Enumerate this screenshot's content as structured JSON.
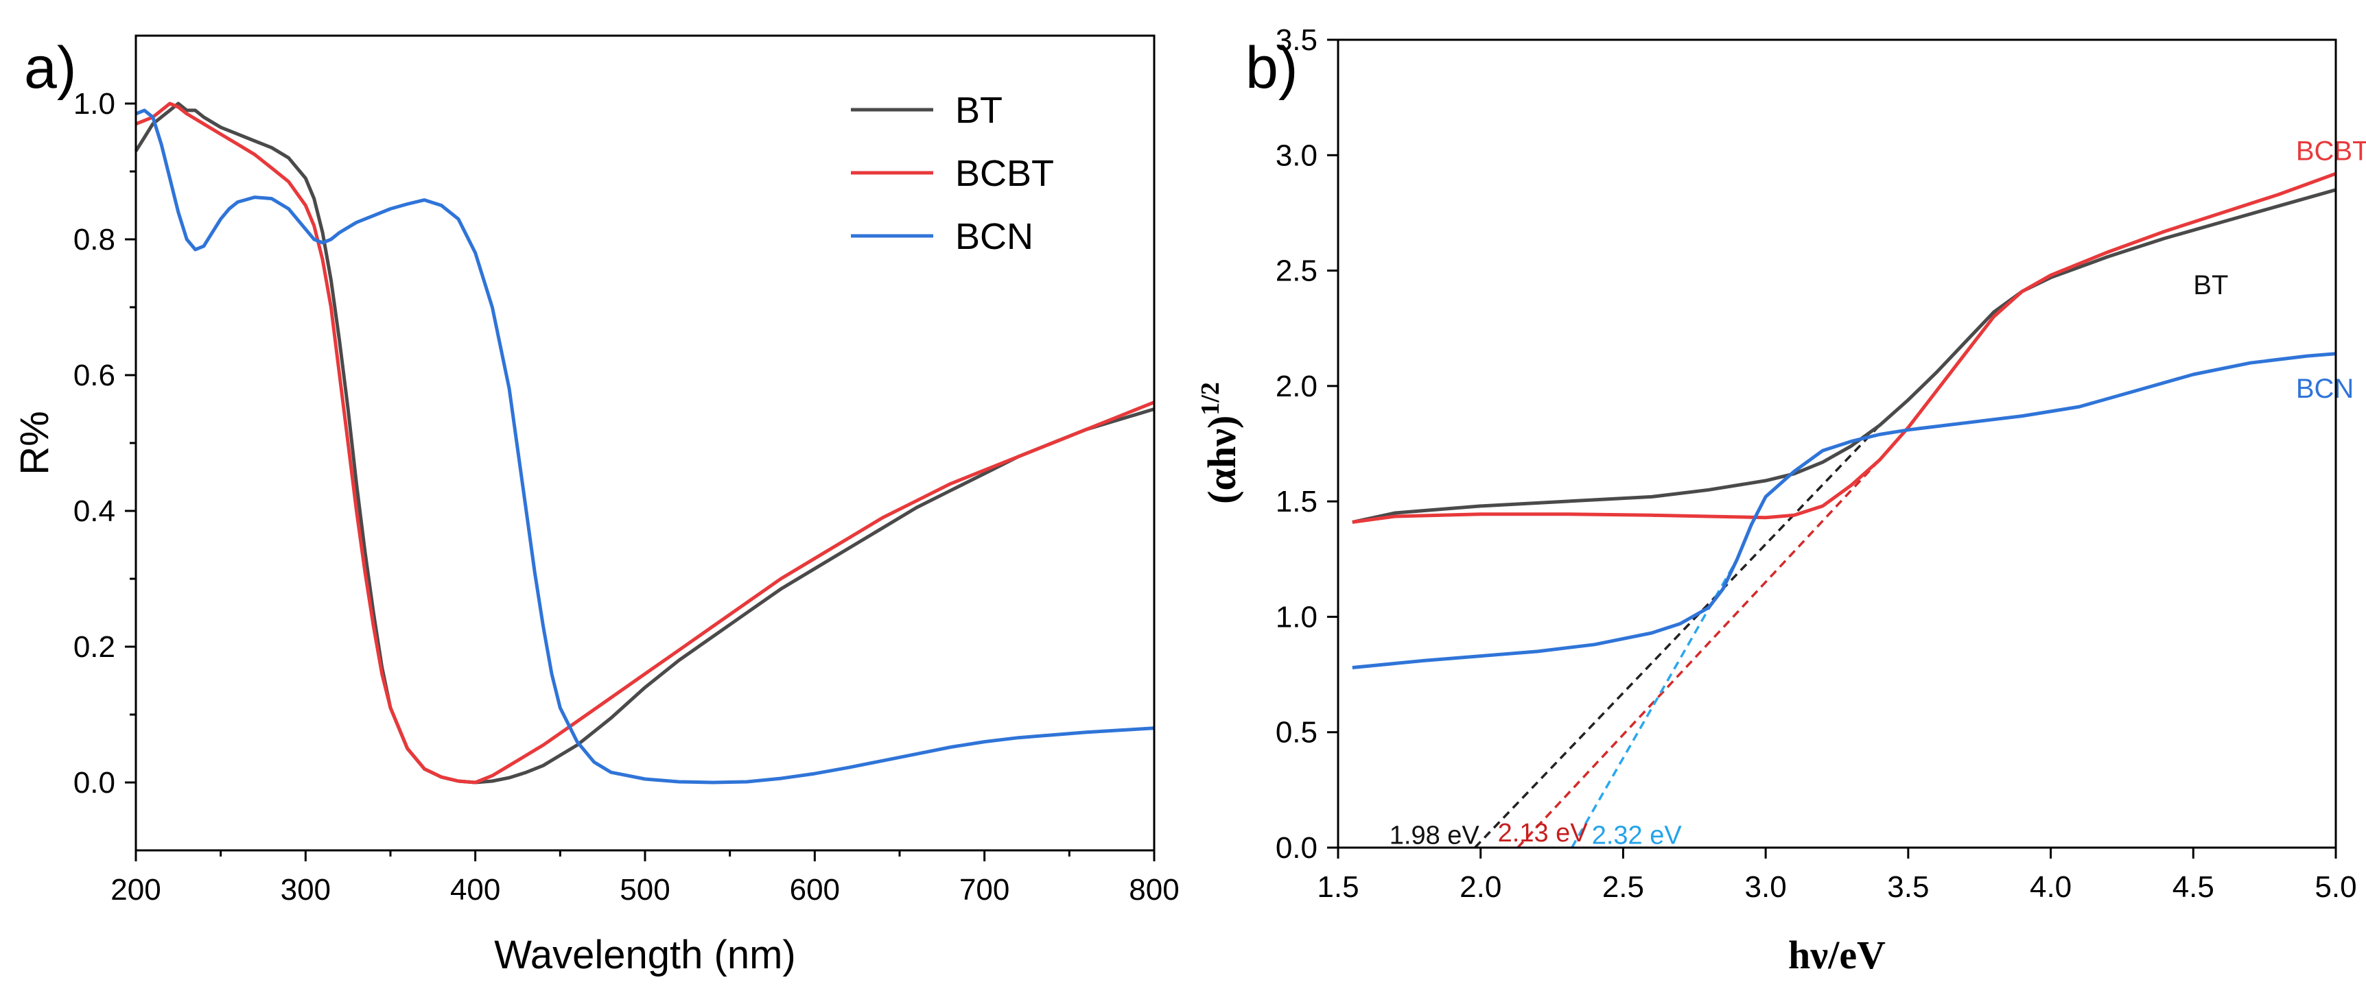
{
  "chart_data": [
    {
      "type": "line",
      "panel_label": "a)",
      "xlabel": "Wavelength (nm)",
      "ylabel": "R%",
      "xlim": [
        200,
        800
      ],
      "ylim": [
        -0.1,
        1.1
      ],
      "x_ticks": [
        200,
        300,
        400,
        500,
        600,
        700,
        800
      ],
      "y_ticks": [
        0.0,
        0.2,
        0.4,
        0.6,
        0.8,
        1.0
      ],
      "x_tick_labels": [
        "200",
        "300",
        "400",
        "500",
        "600",
        "700",
        "800"
      ],
      "y_tick_labels": [
        "0.0",
        "0.2",
        "0.4",
        "0.6",
        "0.8",
        "1.0"
      ],
      "legend": {
        "position": "top-right",
        "entries": [
          "BT",
          "BCBT",
          "BCN"
        ]
      },
      "series": [
        {
          "name": "BT",
          "color": "#4a4a4a",
          "points": [
            [
              200,
              0.93
            ],
            [
              205,
              0.95
            ],
            [
              210,
              0.97
            ],
            [
              215,
              0.98
            ],
            [
              220,
              0.99
            ],
            [
              225,
              1.0
            ],
            [
              230,
              0.99
            ],
            [
              235,
              0.99
            ],
            [
              240,
              0.98
            ],
            [
              250,
              0.965
            ],
            [
              260,
              0.955
            ],
            [
              270,
              0.945
            ],
            [
              280,
              0.935
            ],
            [
              290,
              0.92
            ],
            [
              300,
              0.89
            ],
            [
              305,
              0.86
            ],
            [
              310,
              0.81
            ],
            [
              315,
              0.74
            ],
            [
              320,
              0.65
            ],
            [
              325,
              0.55
            ],
            [
              330,
              0.44
            ],
            [
              335,
              0.34
            ],
            [
              340,
              0.25
            ],
            [
              345,
              0.17
            ],
            [
              350,
              0.11
            ],
            [
              360,
              0.05
            ],
            [
              370,
              0.02
            ],
            [
              380,
              0.008
            ],
            [
              390,
              0.002
            ],
            [
              400,
              0.0
            ],
            [
              410,
              0.002
            ],
            [
              420,
              0.007
            ],
            [
              430,
              0.015
            ],
            [
              440,
              0.025
            ],
            [
              450,
              0.04
            ],
            [
              460,
              0.055
            ],
            [
              470,
              0.075
            ],
            [
              480,
              0.095
            ],
            [
              500,
              0.14
            ],
            [
              520,
              0.18
            ],
            [
              540,
              0.215
            ],
            [
              560,
              0.25
            ],
            [
              580,
              0.285
            ],
            [
              600,
              0.315
            ],
            [
              620,
              0.345
            ],
            [
              640,
              0.375
            ],
            [
              660,
              0.405
            ],
            [
              680,
              0.43
            ],
            [
              700,
              0.455
            ],
            [
              720,
              0.48
            ],
            [
              740,
              0.5
            ],
            [
              760,
              0.52
            ],
            [
              780,
              0.535
            ],
            [
              800,
              0.55
            ]
          ]
        },
        {
          "name": "BCBT",
          "color": "#e8393b",
          "points": [
            [
              200,
              0.97
            ],
            [
              205,
              0.975
            ],
            [
              210,
              0.98
            ],
            [
              215,
              0.99
            ],
            [
              220,
              1.0
            ],
            [
              225,
              0.995
            ],
            [
              230,
              0.985
            ],
            [
              240,
              0.97
            ],
            [
              250,
              0.955
            ],
            [
              260,
              0.94
            ],
            [
              270,
              0.925
            ],
            [
              280,
              0.905
            ],
            [
              290,
              0.885
            ],
            [
              300,
              0.85
            ],
            [
              305,
              0.82
            ],
            [
              310,
              0.77
            ],
            [
              315,
              0.7
            ],
            [
              320,
              0.6
            ],
            [
              325,
              0.5
            ],
            [
              330,
              0.4
            ],
            [
              335,
              0.31
            ],
            [
              340,
              0.23
            ],
            [
              345,
              0.16
            ],
            [
              350,
              0.11
            ],
            [
              360,
              0.05
            ],
            [
              370,
              0.02
            ],
            [
              380,
              0.008
            ],
            [
              390,
              0.002
            ],
            [
              400,
              0.0
            ],
            [
              410,
              0.01
            ],
            [
              420,
              0.025
            ],
            [
              430,
              0.04
            ],
            [
              440,
              0.055
            ],
            [
              460,
              0.09
            ],
            [
              480,
              0.125
            ],
            [
              500,
              0.16
            ],
            [
              520,
              0.195
            ],
            [
              540,
              0.23
            ],
            [
              560,
              0.265
            ],
            [
              580,
              0.3
            ],
            [
              600,
              0.33
            ],
            [
              620,
              0.36
            ],
            [
              640,
              0.39
            ],
            [
              660,
              0.415
            ],
            [
              680,
              0.44
            ],
            [
              700,
              0.46
            ],
            [
              720,
              0.48
            ],
            [
              740,
              0.5
            ],
            [
              760,
              0.52
            ],
            [
              780,
              0.54
            ],
            [
              800,
              0.56
            ]
          ]
        },
        {
          "name": "BCN",
          "color": "#2f74d8",
          "points": [
            [
              200,
              0.985
            ],
            [
              205,
              0.99
            ],
            [
              210,
              0.98
            ],
            [
              215,
              0.94
            ],
            [
              220,
              0.89
            ],
            [
              225,
              0.84
            ],
            [
              230,
              0.8
            ],
            [
              235,
              0.785
            ],
            [
              240,
              0.79
            ],
            [
              245,
              0.81
            ],
            [
              250,
              0.83
            ],
            [
              255,
              0.845
            ],
            [
              260,
              0.855
            ],
            [
              270,
              0.862
            ],
            [
              280,
              0.86
            ],
            [
              290,
              0.845
            ],
            [
              300,
              0.815
            ],
            [
              305,
              0.8
            ],
            [
              310,
              0.795
            ],
            [
              315,
              0.8
            ],
            [
              320,
              0.81
            ],
            [
              330,
              0.825
            ],
            [
              340,
              0.835
            ],
            [
              350,
              0.845
            ],
            [
              360,
              0.852
            ],
            [
              370,
              0.858
            ],
            [
              380,
              0.85
            ],
            [
              390,
              0.83
            ],
            [
              400,
              0.78
            ],
            [
              410,
              0.7
            ],
            [
              420,
              0.58
            ],
            [
              425,
              0.49
            ],
            [
              430,
              0.4
            ],
            [
              435,
              0.31
            ],
            [
              440,
              0.23
            ],
            [
              445,
              0.16
            ],
            [
              450,
              0.11
            ],
            [
              460,
              0.06
            ],
            [
              470,
              0.03
            ],
            [
              480,
              0.015
            ],
            [
              500,
              0.005
            ],
            [
              520,
              0.001
            ],
            [
              540,
              0.0
            ],
            [
              560,
              0.001
            ],
            [
              580,
              0.006
            ],
            [
              600,
              0.013
            ],
            [
              620,
              0.022
            ],
            [
              640,
              0.032
            ],
            [
              660,
              0.042
            ],
            [
              680,
              0.052
            ],
            [
              700,
              0.06
            ],
            [
              720,
              0.066
            ],
            [
              740,
              0.07
            ],
            [
              760,
              0.074
            ],
            [
              780,
              0.077
            ],
            [
              800,
              0.08
            ]
          ]
        }
      ]
    },
    {
      "type": "line",
      "panel_label": "b)",
      "xlabel": "hν/eV",
      "ylabel_main": "(αhν)",
      "ylabel_sup": "1/2",
      "xlim": [
        1.5,
        5.0
      ],
      "ylim": [
        0.0,
        3.5
      ],
      "x_ticks": [
        1.5,
        2.0,
        2.5,
        3.0,
        3.5,
        4.0,
        4.5,
        5.0
      ],
      "y_ticks": [
        0.0,
        0.5,
        1.0,
        1.5,
        2.0,
        2.5,
        3.0,
        3.5
      ],
      "x_tick_labels": [
        "1.5",
        "2.0",
        "2.5",
        "3.0",
        "3.5",
        "4.0",
        "4.5",
        "5.0"
      ],
      "y_tick_labels": [
        "0.0",
        "0.5",
        "1.0",
        "1.5",
        "2.0",
        "2.5",
        "3.0",
        "3.5"
      ],
      "series": [
        {
          "name": "BT",
          "color": "#4a4a4a",
          "label_at": [
            4.5,
            2.44
          ],
          "points": [
            [
              1.55,
              1.41
            ],
            [
              1.7,
              1.45
            ],
            [
              2.0,
              1.48
            ],
            [
              2.3,
              1.5
            ],
            [
              2.6,
              1.52
            ],
            [
              2.8,
              1.55
            ],
            [
              3.0,
              1.59
            ],
            [
              3.1,
              1.62
            ],
            [
              3.2,
              1.67
            ],
            [
              3.3,
              1.74
            ],
            [
              3.4,
              1.83
            ],
            [
              3.5,
              1.94
            ],
            [
              3.6,
              2.06
            ],
            [
              3.7,
              2.19
            ],
            [
              3.8,
              2.32
            ],
            [
              3.9,
              2.41
            ],
            [
              4.0,
              2.47
            ],
            [
              4.2,
              2.56
            ],
            [
              4.4,
              2.64
            ],
            [
              4.6,
              2.71
            ],
            [
              4.8,
              2.78
            ],
            [
              5.0,
              2.85
            ]
          ]
        },
        {
          "name": "BCBT",
          "color": "#e8393b",
          "label_at": [
            4.86,
            3.02
          ],
          "points": [
            [
              1.55,
              1.41
            ],
            [
              1.7,
              1.435
            ],
            [
              2.0,
              1.445
            ],
            [
              2.3,
              1.445
            ],
            [
              2.6,
              1.44
            ],
            [
              2.8,
              1.435
            ],
            [
              3.0,
              1.43
            ],
            [
              3.1,
              1.44
            ],
            [
              3.2,
              1.48
            ],
            [
              3.3,
              1.57
            ],
            [
              3.4,
              1.68
            ],
            [
              3.5,
              1.82
            ],
            [
              3.6,
              1.98
            ],
            [
              3.7,
              2.14
            ],
            [
              3.8,
              2.3
            ],
            [
              3.9,
              2.41
            ],
            [
              4.0,
              2.48
            ],
            [
              4.2,
              2.58
            ],
            [
              4.4,
              2.67
            ],
            [
              4.6,
              2.75
            ],
            [
              4.8,
              2.83
            ],
            [
              5.0,
              2.92
            ]
          ]
        },
        {
          "name": "BCN",
          "color": "#2f74d8",
          "label_at": [
            4.86,
            1.99
          ],
          "points": [
            [
              1.55,
              0.78
            ],
            [
              1.8,
              0.81
            ],
            [
              2.0,
              0.83
            ],
            [
              2.2,
              0.85
            ],
            [
              2.4,
              0.88
            ],
            [
              2.6,
              0.93
            ],
            [
              2.7,
              0.97
            ],
            [
              2.8,
              1.04
            ],
            [
              2.85,
              1.12
            ],
            [
              2.9,
              1.25
            ],
            [
              2.95,
              1.4
            ],
            [
              3.0,
              1.52
            ],
            [
              3.1,
              1.63
            ],
            [
              3.2,
              1.72
            ],
            [
              3.3,
              1.76
            ],
            [
              3.4,
              1.79
            ],
            [
              3.5,
              1.81
            ],
            [
              3.7,
              1.84
            ],
            [
              3.9,
              1.87
            ],
            [
              4.1,
              1.91
            ],
            [
              4.3,
              1.98
            ],
            [
              4.5,
              2.05
            ],
            [
              4.7,
              2.1
            ],
            [
              4.9,
              2.13
            ],
            [
              5.0,
              2.14
            ]
          ]
        }
      ],
      "tangents": [
        {
          "name": "BT",
          "color": "#222222",
          "from": [
            1.98,
            0.0
          ],
          "to": [
            3.4,
            1.83
          ],
          "label": "1.98 eV",
          "label_color": "#111111"
        },
        {
          "name": "BCBT",
          "color": "#d42a2a",
          "from": [
            2.13,
            0.0
          ],
          "to": [
            3.4,
            1.68
          ],
          "label": "2.13 eV",
          "label_color": "#c71e1e"
        },
        {
          "name": "BCN",
          "color": "#2aa7ee",
          "from": [
            2.32,
            0.0
          ],
          "to": [
            2.9,
            1.25
          ],
          "label": "2.32 eV",
          "label_color": "#23a3ea"
        }
      ]
    }
  ]
}
